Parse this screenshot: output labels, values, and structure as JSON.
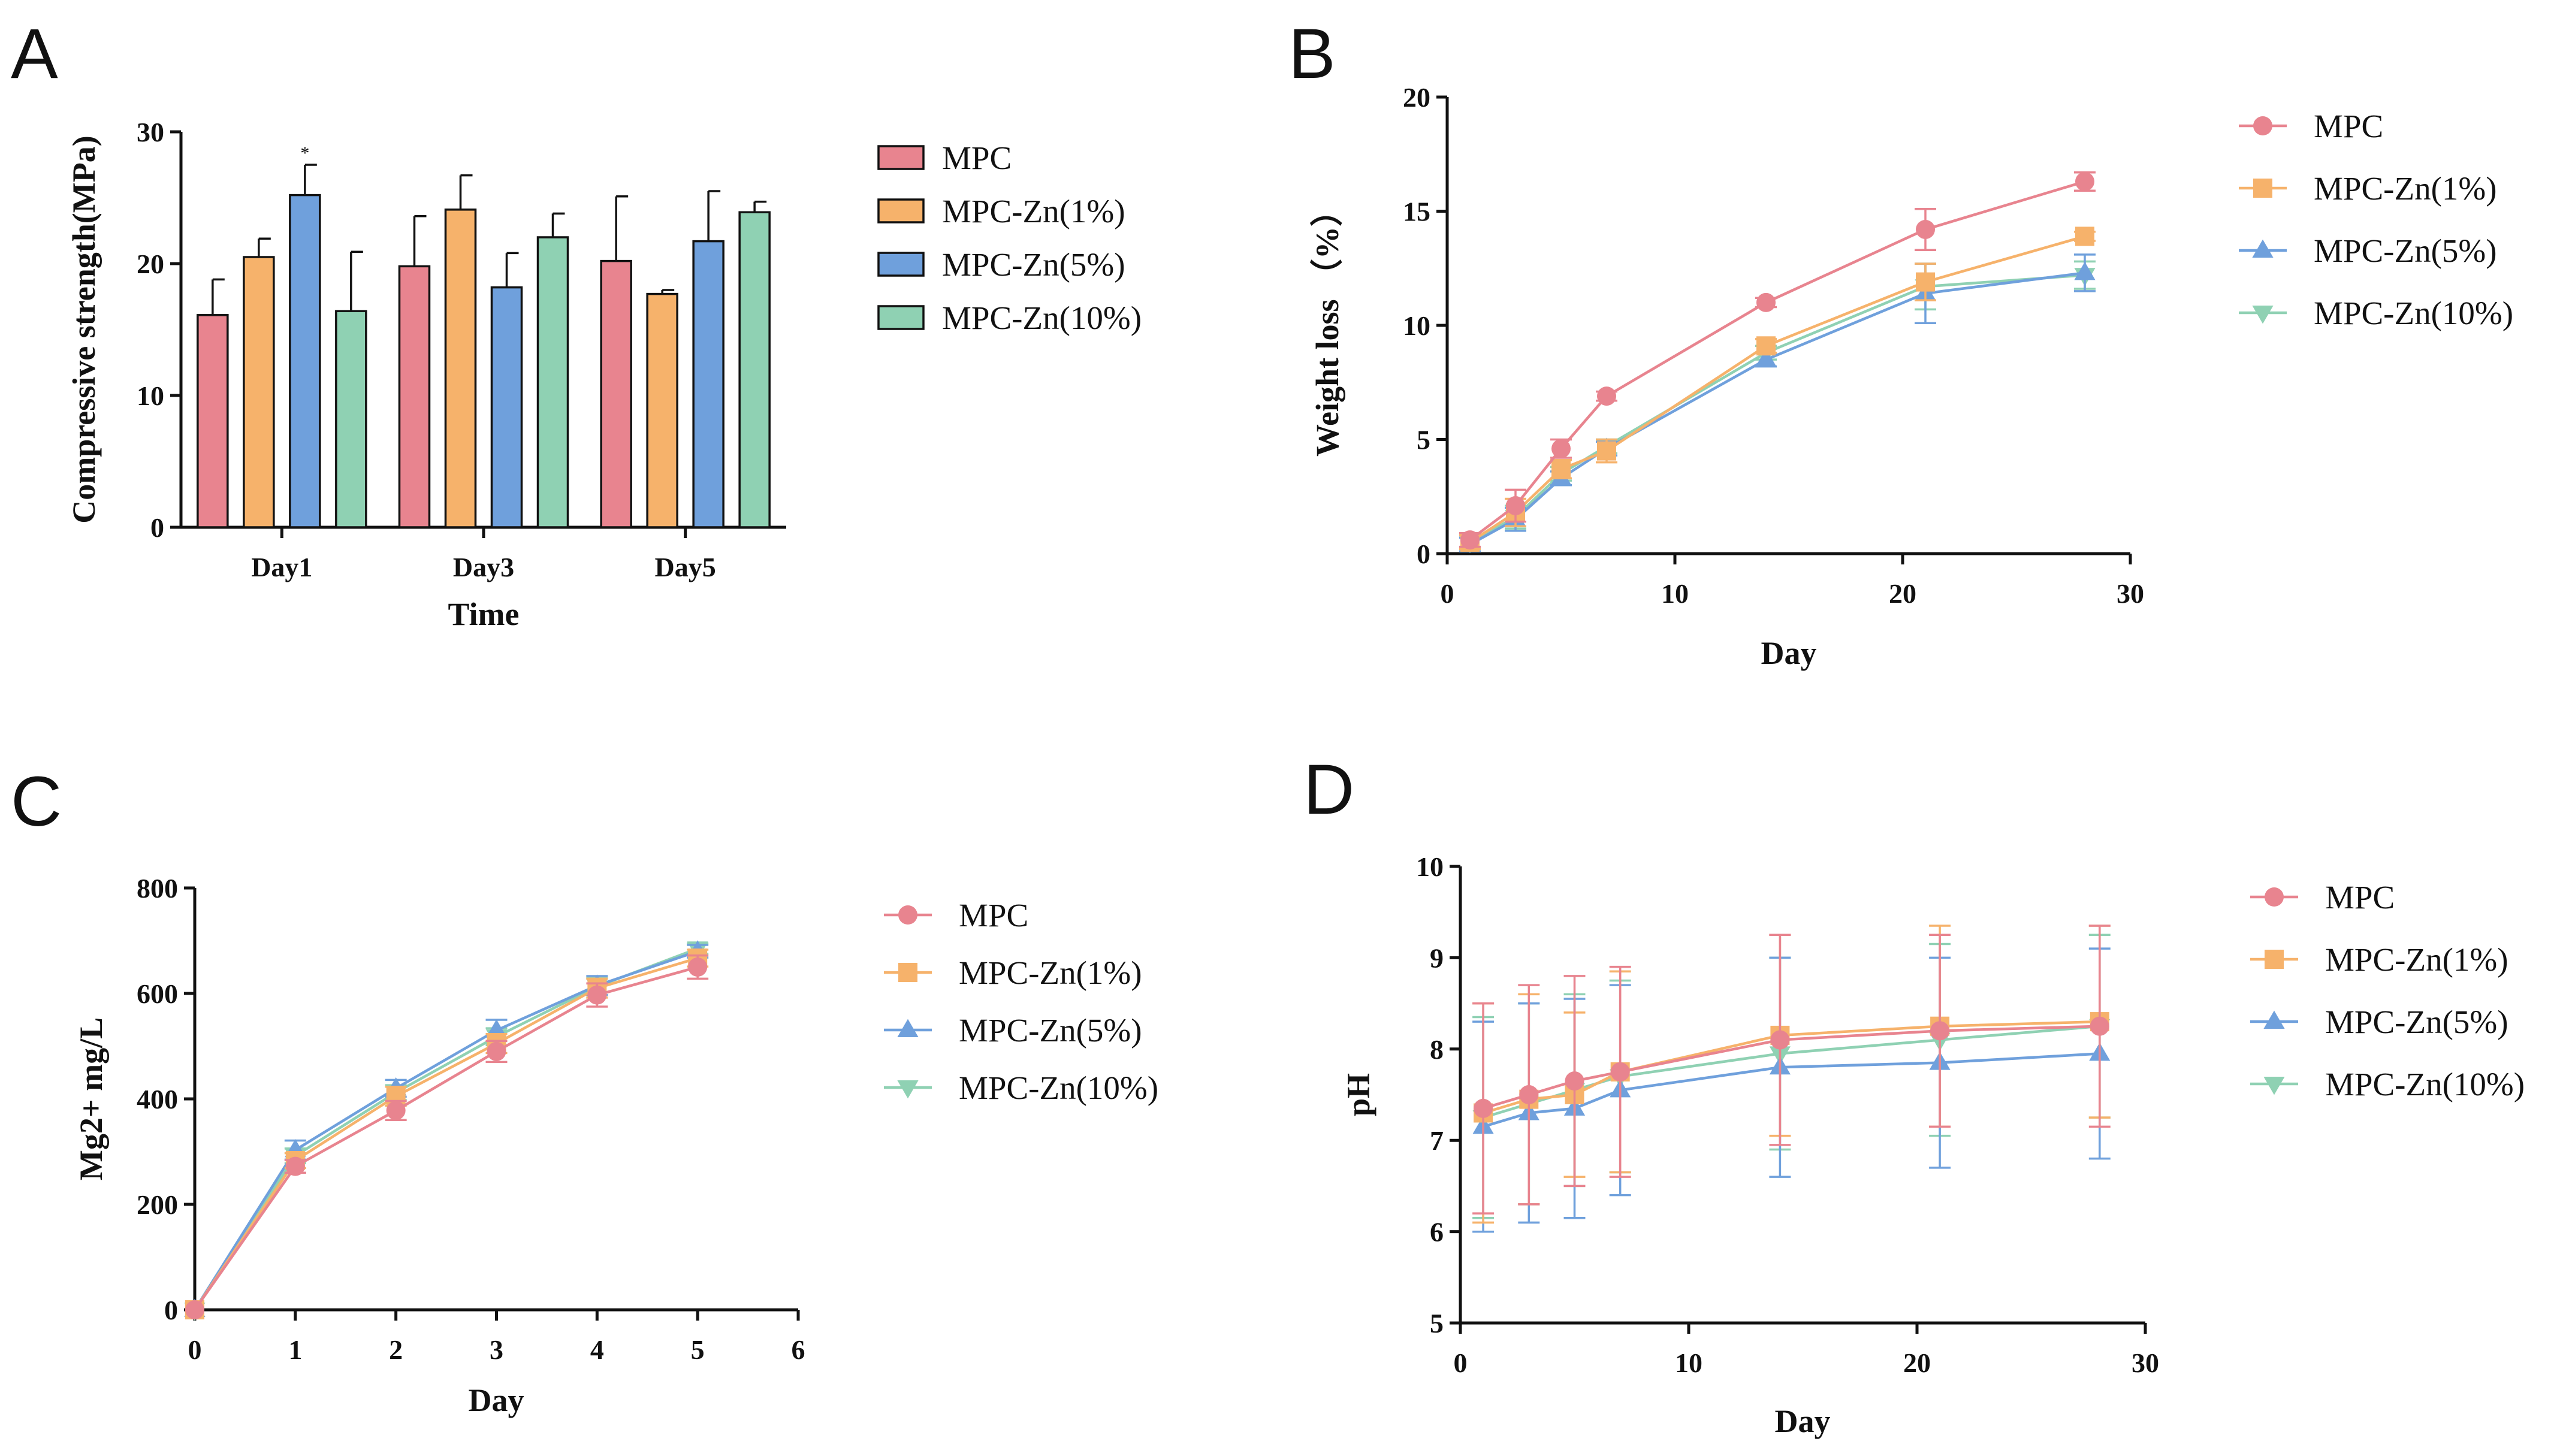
{
  "panels": [
    "A",
    "B",
    "C",
    "D"
  ],
  "colors": {
    "MPC": "#e8848f",
    "MPC-Zn(1%)": "#f6b26b",
    "MPC-Zn(5%)": "#6fa0dc",
    "MPC-Zn(10%)": "#8fd1b3",
    "axis": "#111111"
  },
  "chart_data": [
    {
      "panel": "A",
      "type": "bar",
      "title": "",
      "xlabel": "Time",
      "ylabel": "Compressive strength(MPa)",
      "ylim": [
        0,
        30
      ],
      "yticks": [
        0,
        10,
        20,
        30
      ],
      "categories": [
        "Day1",
        "Day3",
        "Day5"
      ],
      "legend_position": "right",
      "annotations": [
        {
          "text": "*",
          "category": "Day1",
          "series": "MPC-Zn(5%)"
        }
      ],
      "series": [
        {
          "name": "MPC",
          "values": [
            16.1,
            19.8,
            20.2
          ],
          "errors": [
            2.7,
            3.8,
            4.9
          ]
        },
        {
          "name": "MPC-Zn(1%)",
          "values": [
            20.5,
            24.1,
            17.7
          ],
          "errors": [
            1.4,
            2.6,
            0.3
          ]
        },
        {
          "name": "MPC-Zn(5%)",
          "values": [
            25.2,
            18.2,
            21.7
          ],
          "errors": [
            2.3,
            2.6,
            3.8
          ]
        },
        {
          "name": "MPC-Zn(10%)",
          "values": [
            16.4,
            22.0,
            23.9
          ],
          "errors": [
            4.5,
            1.8,
            0.8
          ]
        }
      ]
    },
    {
      "panel": "B",
      "type": "line",
      "xlabel": "Day",
      "ylabel": "Weight loss （%）",
      "xlim": [
        0,
        30
      ],
      "ylim": [
        0,
        20
      ],
      "xticks": [
        0,
        10,
        20,
        30
      ],
      "yticks": [
        0,
        5,
        10,
        15,
        20
      ],
      "x": [
        1,
        3,
        5,
        7,
        14,
        21,
        28
      ],
      "legend_position": "right",
      "series": [
        {
          "name": "MPC",
          "marker": "circle",
          "values": [
            0.6,
            2.1,
            4.6,
            6.9,
            11.0,
            14.2,
            16.3
          ],
          "errors": [
            0.3,
            0.7,
            0.4,
            0.2,
            0.2,
            0.9,
            0.4
          ]
        },
        {
          "name": "MPC-Zn(1%)",
          "marker": "square",
          "values": [
            0.5,
            1.8,
            3.7,
            4.5,
            9.1,
            11.9,
            13.9
          ],
          "errors": [
            0.3,
            0.6,
            0.4,
            0.5,
            0.3,
            0.8,
            0.2
          ]
        },
        {
          "name": "MPC-Zn(5%)",
          "marker": "triangle-up",
          "values": [
            0.4,
            1.5,
            3.3,
            4.6,
            8.5,
            11.4,
            12.3
          ],
          "errors": [
            0.3,
            0.5,
            0.3,
            0.3,
            0.3,
            1.3,
            0.8
          ]
        },
        {
          "name": "MPC-Zn(10%)",
          "marker": "triangle-down",
          "values": [
            0.5,
            1.6,
            3.5,
            4.7,
            8.8,
            11.7,
            12.2
          ],
          "errors": [
            0.3,
            0.5,
            0.3,
            0.3,
            0.3,
            1.0,
            0.6
          ]
        }
      ]
    },
    {
      "panel": "C",
      "type": "line",
      "xlabel": "Day",
      "ylabel": "Mg2+ mg/L",
      "xlim": [
        0,
        6
      ],
      "ylim": [
        0,
        800
      ],
      "xticks": [
        0,
        1,
        2,
        3,
        4,
        5,
        6
      ],
      "yticks": [
        0,
        200,
        400,
        600,
        800
      ],
      "x": [
        0,
        1,
        2,
        3,
        4,
        5
      ],
      "legend_position": "right",
      "series": [
        {
          "name": "MPC",
          "marker": "circle",
          "values": [
            0,
            272,
            378,
            490,
            597,
            650
          ],
          "errors": [
            0,
            12,
            18,
            20,
            22,
            22
          ]
        },
        {
          "name": "MPC-Zn(1%)",
          "marker": "square",
          "values": [
            0,
            283,
            405,
            505,
            610,
            667
          ],
          "errors": [
            0,
            14,
            18,
            18,
            18,
            16
          ]
        },
        {
          "name": "MPC-Zn(5%)",
          "marker": "triangle-up",
          "values": [
            0,
            303,
            420,
            530,
            615,
            680
          ],
          "errors": [
            0,
            18,
            16,
            20,
            18,
            12
          ]
        },
        {
          "name": "MPC-Zn(10%)",
          "marker": "triangle-down",
          "values": [
            0,
            292,
            412,
            518,
            613,
            685
          ],
          "errors": [
            0,
            14,
            14,
            16,
            16,
            10
          ]
        }
      ]
    },
    {
      "panel": "D",
      "type": "line",
      "xlabel": "Day",
      "ylabel": "pH",
      "xlim": [
        0,
        30
      ],
      "ylim": [
        5,
        10
      ],
      "xticks": [
        0,
        10,
        20,
        30
      ],
      "yticks": [
        5,
        6,
        7,
        8,
        9,
        10
      ],
      "x": [
        1,
        3,
        5,
        7,
        14,
        21,
        28
      ],
      "legend_position": "right",
      "series": [
        {
          "name": "MPC",
          "marker": "circle",
          "values": [
            7.35,
            7.5,
            7.65,
            7.75,
            8.1,
            8.2,
            8.25
          ],
          "errors": [
            1.15,
            1.2,
            1.15,
            1.15,
            1.15,
            1.05,
            1.1
          ]
        },
        {
          "name": "MPC-Zn(1%)",
          "marker": "square",
          "values": [
            7.3,
            7.45,
            7.5,
            7.75,
            8.15,
            8.25,
            8.3
          ],
          "errors": [
            1.2,
            1.15,
            0.9,
            1.1,
            1.1,
            1.1,
            1.05
          ]
        },
        {
          "name": "MPC-Zn(5%)",
          "marker": "triangle-up",
          "values": [
            7.15,
            7.3,
            7.35,
            7.55,
            7.8,
            7.85,
            7.95
          ],
          "errors": [
            1.15,
            1.2,
            1.2,
            1.15,
            1.2,
            1.15,
            1.15
          ]
        },
        {
          "name": "MPC-Zn(10%)",
          "marker": "triangle-down",
          "values": [
            7.25,
            7.4,
            7.55,
            7.7,
            7.95,
            8.1,
            8.25
          ],
          "errors": [
            1.1,
            1.1,
            1.05,
            1.05,
            1.05,
            1.05,
            1.0
          ]
        }
      ]
    }
  ]
}
